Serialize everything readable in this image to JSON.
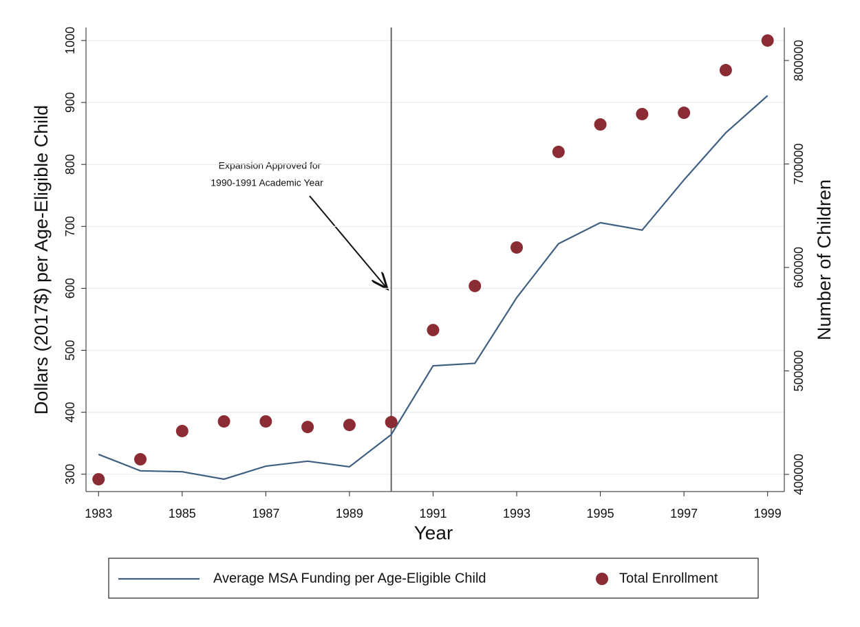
{
  "chart_data": {
    "type": "line",
    "x": [
      1983,
      1984,
      1985,
      1986,
      1987,
      1988,
      1989,
      1990,
      1991,
      1992,
      1993,
      1994,
      1995,
      1996,
      1997,
      1998,
      1999
    ],
    "series": [
      {
        "name": "Average MSA Funding per Age-Eligible Child",
        "type": "line",
        "color": "#3e5f80",
        "values": [
          332,
          305.5,
          304,
          292,
          313,
          321,
          312,
          364,
          475,
          479,
          585,
          672,
          706,
          694,
          775,
          851,
          911
        ]
      },
      {
        "name": "Total Enrollment",
        "type": "scatter",
        "color": "#8b2c34",
        "axis": "y2",
        "values": [
          395300,
          414600,
          441900,
          451200,
          451200,
          445800,
          447800,
          450500,
          539500,
          582100,
          619300,
          711700,
          738200,
          748200,
          749500,
          790700,
          819300
        ]
      }
    ],
    "xlabel": "Year",
    "ylabel": "Dollars (2017$) per Age-Eligible Child",
    "y2label": "Number of Children",
    "xlim": [
      1982.7,
      1999.4
    ],
    "xticks": [
      1983,
      1985,
      1987,
      1989,
      1991,
      1993,
      1995,
      1997,
      1999
    ],
    "ylim": [
      272,
      1021
    ],
    "yticks": [
      300,
      400,
      500,
      600,
      700,
      800,
      900,
      1000
    ],
    "y2lim": [
      383400,
      831900
    ],
    "y2ticks": [
      400000,
      500000,
      600000,
      700000,
      800000
    ],
    "grid": true,
    "reference_line_x": 1990,
    "annotation": [
      "Expansion Approved for",
      "1990-1991 Academic Year"
    ],
    "legend": "bottom"
  }
}
